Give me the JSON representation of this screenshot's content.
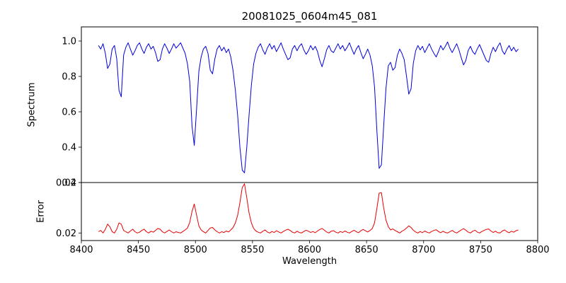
{
  "colors": {
    "spectrum": "#0000dd",
    "error": "#e60000",
    "axis": "#000000",
    "background": "#ffffff"
  },
  "chart_data": {
    "type": "line",
    "title": "20081025_0604m45_081",
    "xlabel": "Wavelength",
    "xlim": [
      8400,
      8800
    ],
    "xticks": [
      8400,
      8450,
      8500,
      8550,
      8600,
      8650,
      8700,
      8750,
      8800
    ],
    "xtick_labels": [
      "8400",
      "8450",
      "8500",
      "8550",
      "8600",
      "8650",
      "8700",
      "8750",
      "8800"
    ],
    "grid": false,
    "legend": "none",
    "subplots": [
      {
        "ylabel": "Spectrum",
        "ylim": [
          0.2,
          1.08
        ],
        "yticks": [
          0.2,
          0.4,
          0.6,
          0.8,
          1.0
        ],
        "ytick_labels": [
          "0.2",
          "0.4",
          "0.6",
          "0.8",
          "1.0"
        ],
        "main_absorption_lines_x": [
          8498,
          8542,
          8662
        ],
        "series": [
          {
            "name": "spectrum",
            "color": "#0000dd",
            "x_start": 8415,
            "x_step": 2,
            "values": [
              0.975,
              0.955,
              0.985,
              0.93,
              0.845,
              0.87,
              0.955,
              0.975,
              0.9,
              0.72,
              0.685,
              0.92,
              0.965,
              0.99,
              0.955,
              0.92,
              0.945,
              0.975,
              0.99,
              0.955,
              0.93,
              0.965,
              0.985,
              0.955,
              0.97,
              0.935,
              0.885,
              0.895,
              0.955,
              0.985,
              0.96,
              0.93,
              0.955,
              0.985,
              0.96,
              0.975,
              0.99,
              0.96,
              0.93,
              0.87,
              0.77,
              0.52,
              0.41,
              0.62,
              0.83,
              0.91,
              0.955,
              0.97,
              0.93,
              0.835,
              0.815,
              0.9,
              0.955,
              0.975,
              0.945,
              0.965,
              0.935,
              0.955,
              0.91,
              0.83,
              0.72,
              0.58,
              0.4,
              0.27,
              0.255,
              0.4,
              0.58,
              0.75,
              0.87,
              0.93,
              0.965,
              0.985,
              0.95,
              0.925,
              0.96,
              0.985,
              0.955,
              0.975,
              0.94,
              0.965,
              0.99,
              0.955,
              0.925,
              0.895,
              0.905,
              0.955,
              0.975,
              0.945,
              0.97,
              0.985,
              0.95,
              0.925,
              0.945,
              0.975,
              0.95,
              0.97,
              0.94,
              0.89,
              0.855,
              0.9,
              0.95,
              0.975,
              0.945,
              0.935,
              0.96,
              0.985,
              0.955,
              0.975,
              0.945,
              0.965,
              0.99,
              0.955,
              0.925,
              0.955,
              0.975,
              0.935,
              0.9,
              0.925,
              0.955,
              0.92,
              0.86,
              0.74,
              0.5,
              0.28,
              0.3,
              0.52,
              0.73,
              0.86,
              0.88,
              0.835,
              0.85,
              0.92,
              0.955,
              0.93,
              0.895,
              0.8,
              0.7,
              0.73,
              0.875,
              0.945,
              0.975,
              0.95,
              0.97,
              0.935,
              0.96,
              0.985,
              0.955,
              0.93,
              0.91,
              0.94,
              0.975,
              0.95,
              0.97,
              0.995,
              0.96,
              0.935,
              0.96,
              0.985,
              0.95,
              0.905,
              0.865,
              0.89,
              0.945,
              0.97,
              0.94,
              0.925,
              0.955,
              0.98,
              0.95,
              0.92,
              0.89,
              0.88,
              0.93,
              0.965,
              0.94,
              0.97,
              0.99,
              0.945,
              0.925,
              0.955,
              0.975,
              0.945,
              0.965,
              0.94,
              0.955
            ]
          }
        ]
      },
      {
        "ylabel": "Error",
        "ylim": [
          0.017,
          0.04
        ],
        "yticks": [
          0.02,
          0.04
        ],
        "ytick_labels": [
          "0.02",
          "0.04"
        ],
        "series": [
          {
            "name": "error",
            "color": "#e60000",
            "x_start": 8415,
            "x_step": 2,
            "values": [
              0.0205,
              0.021,
              0.02,
              0.0215,
              0.0235,
              0.0225,
              0.0205,
              0.02,
              0.0215,
              0.024,
              0.0235,
              0.021,
              0.0205,
              0.02,
              0.0208,
              0.0215,
              0.0205,
              0.02,
              0.0203,
              0.021,
              0.0215,
              0.0205,
              0.02,
              0.0207,
              0.0203,
              0.021,
              0.0218,
              0.0215,
              0.0205,
              0.02,
              0.0206,
              0.0212,
              0.0205,
              0.02,
              0.0205,
              0.0202,
              0.02,
              0.0206,
              0.0212,
              0.022,
              0.0242,
              0.0285,
              0.0315,
              0.027,
              0.0228,
              0.0212,
              0.0205,
              0.02,
              0.021,
              0.022,
              0.0222,
              0.0212,
              0.0205,
              0.02,
              0.0205,
              0.0202,
              0.0208,
              0.0204,
              0.0212,
              0.0222,
              0.024,
              0.027,
              0.032,
              0.038,
              0.0395,
              0.034,
              0.028,
              0.024,
              0.0218,
              0.0208,
              0.0203,
              0.02,
              0.0207,
              0.0212,
              0.0204,
              0.02,
              0.0206,
              0.0202,
              0.0209,
              0.0204,
              0.02,
              0.0206,
              0.0211,
              0.0215,
              0.021,
              0.0203,
              0.02,
              0.0207,
              0.0202,
              0.02,
              0.0206,
              0.0211,
              0.0207,
              0.0202,
              0.0206,
              0.0201,
              0.0208,
              0.0214,
              0.0218,
              0.0211,
              0.0204,
              0.02,
              0.0207,
              0.0209,
              0.0203,
              0.02,
              0.0206,
              0.0202,
              0.0208,
              0.0203,
              0.02,
              0.0206,
              0.0211,
              0.0205,
              0.0201,
              0.0209,
              0.0214,
              0.0209,
              0.0204,
              0.021,
              0.0218,
              0.024,
              0.0295,
              0.0358,
              0.036,
              0.03,
              0.0252,
              0.0225,
              0.0212,
              0.0216,
              0.021,
              0.0205,
              0.02,
              0.0207,
              0.0212,
              0.022,
              0.0228,
              0.0222,
              0.0211,
              0.0204,
              0.02,
              0.0206,
              0.0201,
              0.0208,
              0.0203,
              0.02,
              0.0206,
              0.021,
              0.0213,
              0.0206,
              0.0201,
              0.0207,
              0.0202,
              0.02,
              0.0205,
              0.021,
              0.0204,
              0.02,
              0.0206,
              0.0212,
              0.0217,
              0.0211,
              0.0204,
              0.02,
              0.0207,
              0.0211,
              0.0204,
              0.02,
              0.0206,
              0.021,
              0.0214,
              0.0216,
              0.0208,
              0.0202,
              0.0207,
              0.0201,
              0.02,
              0.0208,
              0.0212,
              0.0205,
              0.0201,
              0.0207,
              0.0203,
              0.0209,
              0.0212
            ]
          }
        ]
      }
    ]
  }
}
